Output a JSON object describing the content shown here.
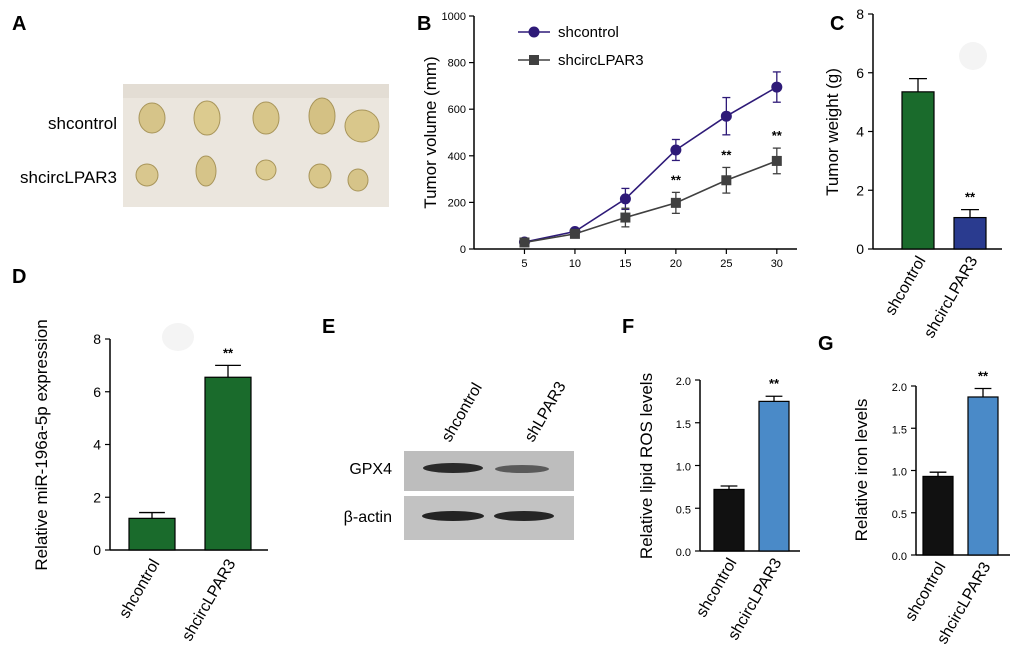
{
  "panels": {
    "A": {
      "letter": "A",
      "row_labels": [
        "shcontrol",
        "shcircLPAR3"
      ]
    },
    "E": {
      "letter": "E",
      "lane_labels": [
        "shcontrol",
        "shLPAR3"
      ],
      "band_labels": [
        "GPX4",
        "β-actin"
      ]
    }
  },
  "chart_data": [
    {
      "panel": "B",
      "type": "line",
      "ylabel": "Tumor volume (mm)",
      "x": [
        5,
        10,
        15,
        20,
        25,
        30
      ],
      "xlim": [
        0,
        32
      ],
      "ylim": [
        0,
        1000
      ],
      "yticks": [
        0,
        200,
        400,
        600,
        800,
        1000
      ],
      "series": [
        {
          "name": "shcontrol",
          "values": [
            30,
            75,
            215,
            425,
            570,
            695
          ],
          "errors": [
            8,
            12,
            45,
            45,
            80,
            65
          ],
          "color": "#2e1a78",
          "marker": "circle"
        },
        {
          "name": "shcircLPAR3",
          "values": [
            28,
            65,
            135,
            198,
            295,
            378
          ],
          "errors": [
            8,
            10,
            40,
            45,
            55,
            55
          ],
          "color": "#404040",
          "marker": "square"
        }
      ],
      "significance": {
        "series": "shcircLPAR3",
        "x": [
          20,
          25,
          30
        ],
        "label": "**"
      },
      "legend": "top-left"
    },
    {
      "panel": "C",
      "type": "bar",
      "ylabel": "Tumor weight (g)",
      "categories": [
        "shcontrol",
        "shcircLPAR3"
      ],
      "values": [
        5.35,
        1.07
      ],
      "errors": [
        0.45,
        0.27
      ],
      "colors": [
        "#1a6b2c",
        "#2a3b8f"
      ],
      "ylim": [
        0,
        8
      ],
      "yticks": [
        0,
        2,
        4,
        6,
        8
      ],
      "significance": [
        "",
        "**"
      ]
    },
    {
      "panel": "D",
      "type": "bar",
      "ylabel": "Relative  miR-196a-5p expression",
      "categories": [
        "shcontrol",
        "shcircLPAR3"
      ],
      "values": [
        1.2,
        6.55
      ],
      "errors": [
        0.22,
        0.45
      ],
      "colors": [
        "#1a6b2c",
        "#1a6b2c"
      ],
      "ylim": [
        0,
        8
      ],
      "yticks": [
        0,
        2,
        4,
        6,
        8
      ],
      "significance": [
        "",
        "**"
      ]
    },
    {
      "panel": "F",
      "type": "bar",
      "ylabel": "Relative lipid ROS levels",
      "categories": [
        "shcontrol",
        "shcircLPAR3"
      ],
      "values": [
        0.72,
        1.75
      ],
      "errors": [
        0.04,
        0.06
      ],
      "colors": [
        "#111111",
        "#4a8ac8"
      ],
      "ylim": [
        0,
        2.0
      ],
      "yticks": [
        "0.0",
        "0.5",
        "1.0",
        "1.5",
        "2.0"
      ],
      "significance": [
        "",
        "**"
      ]
    },
    {
      "panel": "G",
      "type": "bar",
      "ylabel": "Relative iron levels",
      "categories": [
        "shcontrol",
        "shcircLPAR3"
      ],
      "values": [
        0.93,
        1.87
      ],
      "errors": [
        0.05,
        0.1
      ],
      "colors": [
        "#111111",
        "#4a8ac8"
      ],
      "ylim": [
        0,
        2.0
      ],
      "yticks": [
        "0.0",
        "0.5",
        "1.0",
        "1.5",
        "2.0"
      ],
      "significance": [
        "",
        "**"
      ]
    }
  ]
}
